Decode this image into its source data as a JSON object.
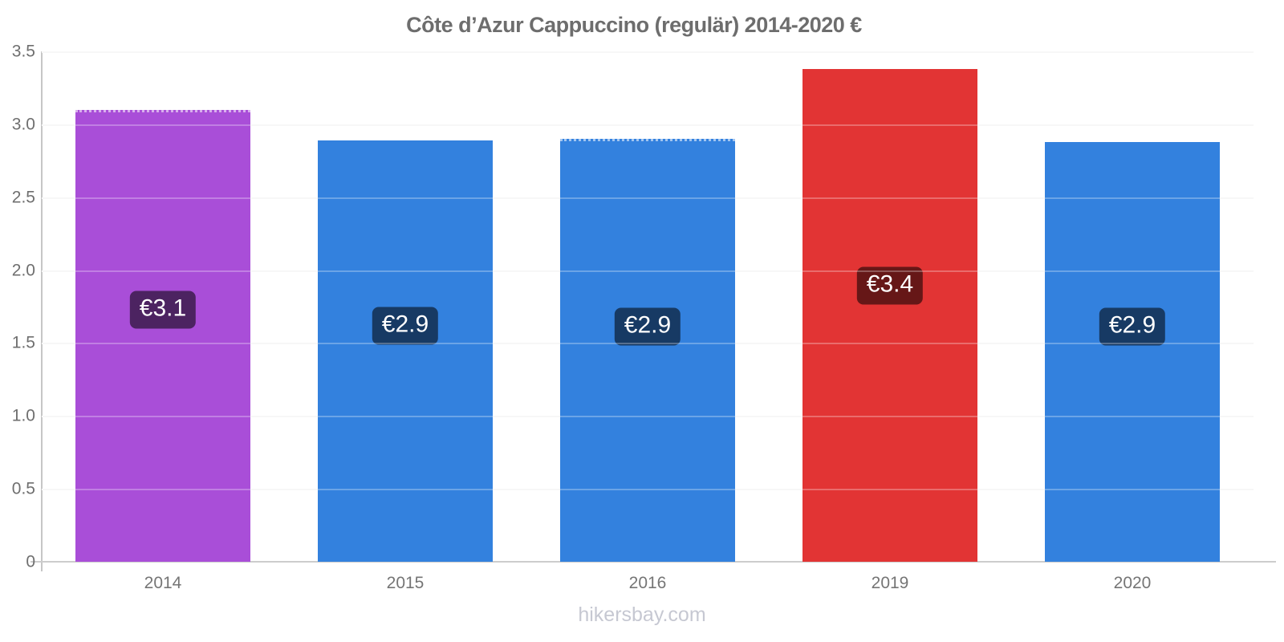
{
  "chart_data": {
    "type": "bar",
    "title": "Côte d’Azur Cappuccino (regulär) 2014-2020 €",
    "xlabel": "",
    "ylabel": "",
    "ylim": [
      0,
      3.5
    ],
    "ytick_step": 0.5,
    "yticks": [
      "3.5",
      "3.0",
      "2.5",
      "2.0",
      "1.5",
      "1.0",
      "0.5",
      "0"
    ],
    "grid": true,
    "legend": "none",
    "categories": [
      "2014",
      "2015",
      "2016",
      "2019",
      "2020"
    ],
    "values": [
      3.1,
      2.89,
      2.9,
      3.38,
      2.88
    ],
    "bars": [
      {
        "category": "2014",
        "value": 3.1,
        "label": "€3.1",
        "color": "#a94ed8",
        "dotted_top": true
      },
      {
        "category": "2015",
        "value": 2.89,
        "label": "€2.9",
        "color": "#3381de",
        "dotted_top": false
      },
      {
        "category": "2016",
        "value": 2.9,
        "label": "€2.9",
        "color": "#3381de",
        "dotted_top": true
      },
      {
        "category": "2019",
        "value": 3.38,
        "label": "€3.4",
        "color": "#e23434",
        "dotted_top": false
      },
      {
        "category": "2020",
        "value": 2.88,
        "label": "€2.9",
        "color": "#3381de",
        "dotted_top": false
      }
    ],
    "badge_style": {
      "background": "rgba(0,0,0,0.55)",
      "text_color": "#ffffff"
    }
  },
  "colors": {
    "title": "#6d6d6d",
    "tick_label": "#6f6f6f",
    "axis": "#c9c9c9",
    "grid": "#f4f4f4",
    "watermark": "#c6c8d2",
    "background": "#ffffff"
  },
  "footer": {
    "watermark": "hikersbay.com"
  }
}
